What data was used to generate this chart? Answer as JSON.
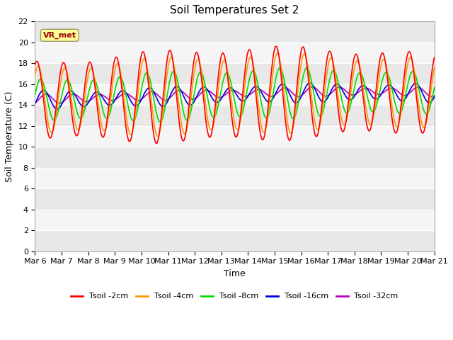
{
  "title": "Soil Temperatures Set 2",
  "xlabel": "Time",
  "ylabel": "Soil Temperature (C)",
  "xlim": [
    0,
    15
  ],
  "ylim": [
    0,
    22
  ],
  "yticks": [
    0,
    2,
    4,
    6,
    8,
    10,
    12,
    14,
    16,
    18,
    20,
    22
  ],
  "xtick_labels": [
    "Mar 6",
    "Mar 7",
    "Mar 8",
    "Mar 9",
    "Mar 10",
    "Mar 11",
    "Mar 12",
    "Mar 13",
    "Mar 14",
    "Mar 15",
    "Mar 16",
    "Mar 17",
    "Mar 18",
    "Mar 19",
    "Mar 20",
    "Mar 21"
  ],
  "annotation_text": "VR_met",
  "annotation_box_facecolor": "#ffff99",
  "annotation_box_edgecolor": "#999966",
  "annotation_text_color": "#990000",
  "fig_bg_color": "#ffffff",
  "plot_bg_color": "#ffffff",
  "band_dark_color": "#e8e8e8",
  "band_light_color": "#f5f5f5",
  "data_band_color": "#d8d8d8",
  "grid_line_color": "#cccccc",
  "series_colors": {
    "Tsoil -2cm": "#ff0000",
    "Tsoil -4cm": "#ff9900",
    "Tsoil -8cm": "#00dd00",
    "Tsoil -16cm": "#0000dd",
    "Tsoil -32cm": "#bb00bb"
  },
  "series_linewidth": 1.2,
  "title_fontsize": 11,
  "axis_label_fontsize": 9,
  "tick_fontsize": 8,
  "legend_fontsize": 8
}
